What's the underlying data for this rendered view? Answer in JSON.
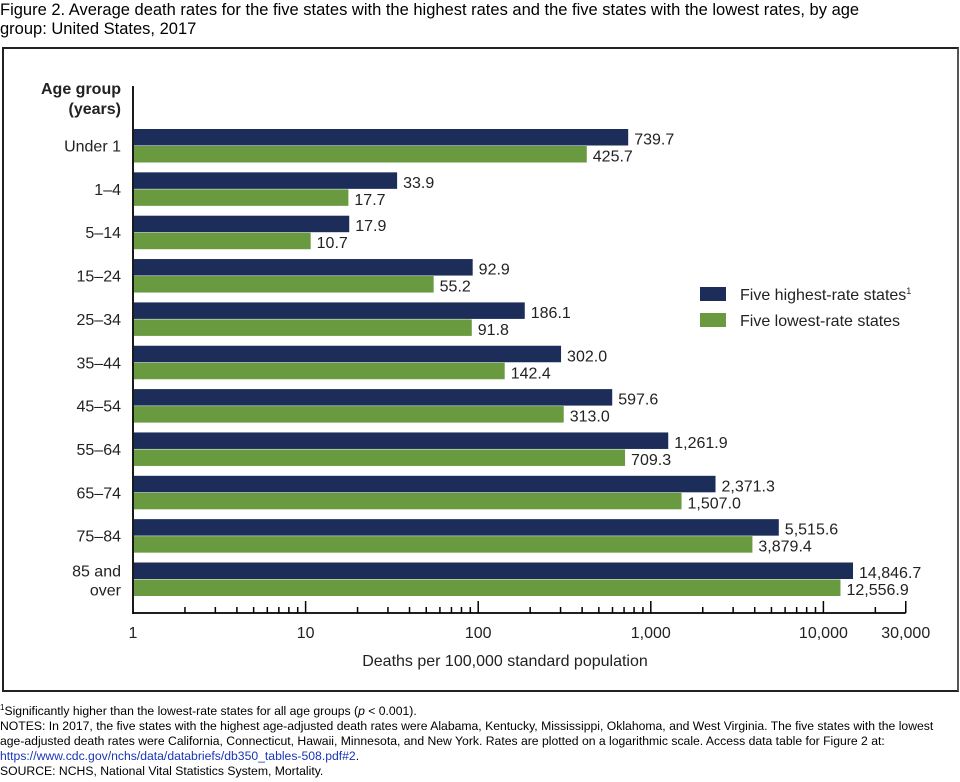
{
  "title": "Figure 2. Average death rates for the five states with the highest rates and the five states with the lowest rates, by age group: United States, 2017",
  "title_line1": "Figure 2. Average death rates for the five states with the highest rates and the five states with the lowest rates, by age",
  "title_line2": "group: United States, 2017",
  "chart_data": {
    "type": "bar",
    "orientation": "horizontal",
    "scale": "log",
    "ylabel_line1": "Age group",
    "ylabel_line2": "(years)",
    "xlabel": "Deaths per 100,000 standard population",
    "xlim": [
      1,
      30000
    ],
    "xticks": [
      {
        "value": 1,
        "label": "1"
      },
      {
        "value": 10,
        "label": "10"
      },
      {
        "value": 100,
        "label": "100"
      },
      {
        "value": 1000,
        "label": "1,000"
      },
      {
        "value": 10000,
        "label": "10,000"
      },
      {
        "value": 30000,
        "label": "30,000"
      }
    ],
    "categories": [
      [
        "Under 1"
      ],
      [
        "1–4"
      ],
      [
        "5–14"
      ],
      [
        "15–24"
      ],
      [
        "25–34"
      ],
      [
        "35–44"
      ],
      [
        "45–54"
      ],
      [
        "55–64"
      ],
      [
        "65–74"
      ],
      [
        "75–84"
      ],
      [
        "85 and",
        "over"
      ]
    ],
    "series": [
      {
        "name": "Five highest-rate states",
        "superscript": "1",
        "color": "#1b2d58",
        "values": [
          739.7,
          33.9,
          17.9,
          92.9,
          186.1,
          302.0,
          597.6,
          1261.9,
          2371.3,
          5515.6,
          14846.7
        ],
        "labels": [
          "739.7",
          "33.9",
          "17.9",
          "92.9",
          "186.1",
          "302.0",
          "597.6",
          "1,261.9",
          "2,371.3",
          "5,515.6",
          "14,846.7"
        ]
      },
      {
        "name": "Five lowest-rate states",
        "superscript": "",
        "color": "#6a9a3f",
        "values": [
          425.7,
          17.7,
          10.7,
          55.2,
          91.8,
          142.4,
          313.0,
          709.3,
          1507.0,
          3879.4,
          12556.9
        ],
        "labels": [
          "425.7",
          "17.7",
          "10.7",
          "55.2",
          "91.8",
          "142.4",
          "313.0",
          "709.3",
          "1,507.0",
          "3,879.4",
          "12,556.9"
        ]
      }
    ],
    "legend_position": "right"
  },
  "footnote": {
    "marker": "1",
    "text_before": "Significantly higher than the lowest-rate states for all age groups (",
    "p": "p",
    "text_after": " < 0.001)."
  },
  "notes": {
    "text": "NOTES: In 2017, the five states with the highest age-adjusted death rates were Alabama, Kentucky, Mississippi, Oklahoma, and West Virginia. The five states with the lowest age-adjusted death rates were California, Connecticut, Hawaii, Minnesota, and New York. Rates are plotted on a logarithmic scale. Access data table for Figure 2 at: ",
    "link": "https://www.cdc.gov/nchs/data/databriefs/db350_tables-508.pdf#2",
    "end": "."
  },
  "source": "SOURCE: NCHS, National Vital Statistics System, Mortality."
}
